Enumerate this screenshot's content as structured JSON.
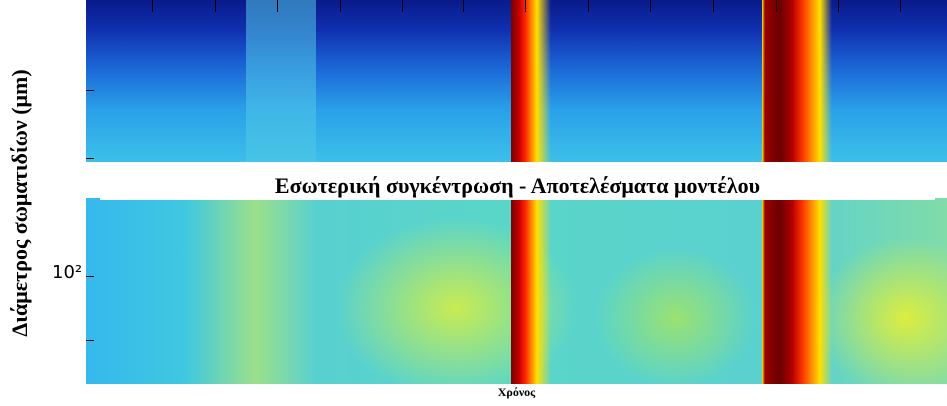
{
  "figure": {
    "title": "Εσωτερική συγκέντρωση - Αποτελέσματα μοντέλου",
    "y_label": "Διάμετρος σωματιδίων (μm)",
    "x_label": "Χρόνος",
    "y_tick_label": "10²"
  }
}
